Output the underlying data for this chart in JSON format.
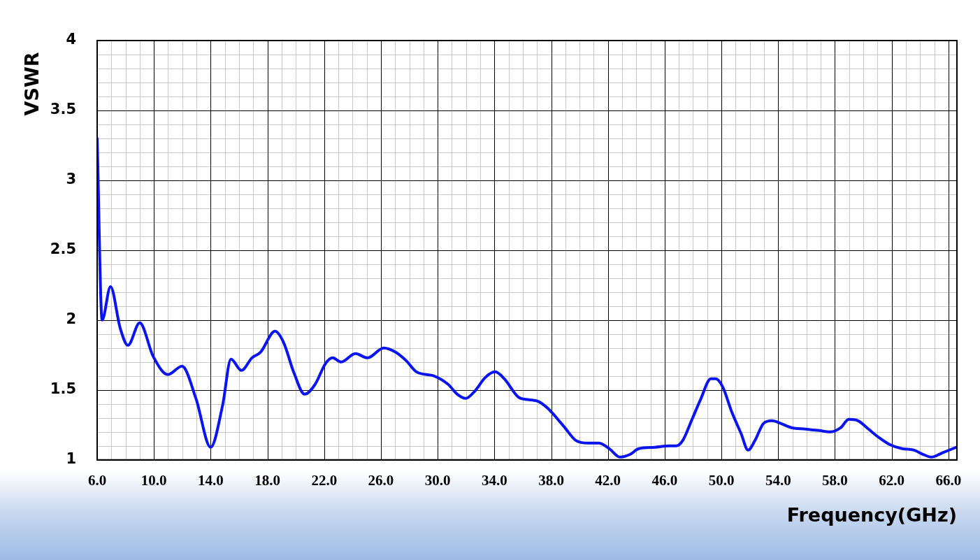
{
  "chart_data": {
    "type": "line",
    "xlabel": "Frequency(GHz)",
    "ylabel": "VSWR",
    "series": [
      {
        "color": "#0a14f0",
        "x": [
          6.0,
          6.35,
          6.94,
          7.63,
          8.17,
          9.0,
          9.95,
          10.99,
          11.98,
          12.96,
          14.0,
          14.84,
          15.43,
          16.17,
          16.91,
          17.51,
          18.54,
          19.14,
          19.88,
          20.62,
          21.36,
          22.1,
          22.6,
          23.2,
          24.2,
          25.06,
          26.2,
          27.04,
          27.78,
          28.5,
          29.75,
          30.74,
          31.38,
          31.98,
          32.6,
          33.36,
          34.05,
          34.7,
          35.68,
          36.42,
          37.06,
          37.75,
          38.89,
          39.73,
          40.62,
          41.36,
          42.1,
          42.84,
          43.58,
          44.17,
          45.31,
          46.3,
          46.8,
          47.28,
          47.93,
          48.52,
          49.26,
          49.6,
          50.1,
          50.74,
          51.38,
          51.88,
          52.37,
          52.96,
          53.56,
          54.2,
          54.94,
          55.93,
          56.9,
          57.65,
          58.4,
          58.98,
          59.63,
          60.37,
          61.1,
          61.85,
          62.74,
          63.58,
          64.2,
          64.8,
          65.56,
          66.54
        ],
        "values": [
          3.3,
          2.0,
          2.24,
          1.94,
          1.82,
          1.98,
          1.74,
          1.61,
          1.67,
          1.44,
          1.09,
          1.39,
          1.72,
          1.64,
          1.73,
          1.77,
          1.92,
          1.84,
          1.62,
          1.47,
          1.54,
          1.69,
          1.73,
          1.7,
          1.76,
          1.73,
          1.8,
          1.77,
          1.71,
          1.63,
          1.6,
          1.54,
          1.47,
          1.44,
          1.49,
          1.59,
          1.63,
          1.58,
          1.45,
          1.43,
          1.42,
          1.37,
          1.24,
          1.14,
          1.12,
          1.12,
          1.08,
          1.02,
          1.04,
          1.08,
          1.09,
          1.1,
          1.1,
          1.14,
          1.29,
          1.43,
          1.58,
          1.58,
          1.52,
          1.34,
          1.19,
          1.07,
          1.14,
          1.26,
          1.28,
          1.26,
          1.23,
          1.22,
          1.21,
          1.2,
          1.23,
          1.29,
          1.28,
          1.22,
          1.16,
          1.11,
          1.08,
          1.07,
          1.04,
          1.02,
          1.05,
          1.09
        ]
      }
    ],
    "xlim": [
      6,
      66.6
    ],
    "ylim": [
      1,
      4
    ],
    "xticks": [
      {
        "value": 6,
        "label": "6.0"
      },
      {
        "value": 10,
        "label": "10.0"
      },
      {
        "value": 14,
        "label": "14.0"
      },
      {
        "value": 18,
        "label": "18.0"
      },
      {
        "value": 22,
        "label": "22.0"
      },
      {
        "value": 26,
        "label": "26.0"
      },
      {
        "value": 30,
        "label": "30.0"
      },
      {
        "value": 34,
        "label": "34.0"
      },
      {
        "value": 38,
        "label": "38.0"
      },
      {
        "value": 42,
        "label": "42.0"
      },
      {
        "value": 46,
        "label": "46.0"
      },
      {
        "value": 50,
        "label": "50.0"
      },
      {
        "value": 54,
        "label": "54.0"
      },
      {
        "value": 58,
        "label": "58.0"
      },
      {
        "value": 62,
        "label": "62.0"
      },
      {
        "value": 66,
        "label": "66.0"
      }
    ],
    "yticks": [
      1,
      1.5,
      2,
      2.5,
      3,
      3.5,
      4
    ],
    "grid": true,
    "marker": "none",
    "line_style": "solid"
  }
}
